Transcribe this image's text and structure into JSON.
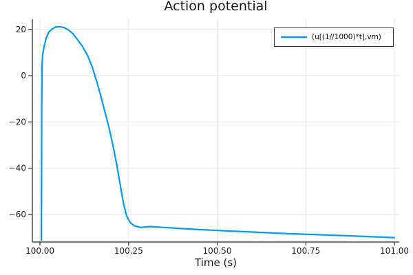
{
  "chart_data": {
    "type": "line",
    "title": "Action potential",
    "xlabel": "Time (s)",
    "ylabel": "",
    "grid": true,
    "legend_position": "top-right",
    "xlim": [
      99.9785,
      101.0135
    ],
    "ylim": [
      -71.9,
      24.4
    ],
    "x_ticks": {
      "values": [
        100.0,
        100.25,
        100.5,
        100.75,
        101.0
      ],
      "labels": [
        "100.00",
        "100.25",
        "100.50",
        "100.75",
        "101.00"
      ]
    },
    "y_ticks": {
      "values": [
        20,
        0,
        -20,
        -40,
        -60
      ],
      "labels": [
        "20",
        "0",
        "−20",
        "−40",
        "−60"
      ]
    },
    "colors": {
      "grid": "#e7e7e7",
      "axis": "#2e2e2e",
      "tick_text": "#1f1f1f",
      "background": "#ffffff",
      "legend_border": "#2e2e2e"
    },
    "series": [
      {
        "name": "(u[(1//1000)*t],vm)",
        "color": "#009af9",
        "x": [
          100.004,
          100.0045,
          100.005,
          100.006,
          100.0075,
          100.012,
          100.018,
          100.025,
          100.035,
          100.045,
          100.055,
          100.068,
          100.08,
          100.092,
          100.105,
          100.12,
          100.135,
          100.148,
          100.16,
          100.172,
          100.183,
          100.194,
          100.205,
          100.216,
          100.226,
          100.236,
          100.245,
          100.255,
          100.268,
          100.285,
          100.31,
          100.35,
          100.4,
          100.5,
          100.6,
          100.7,
          100.8,
          100.9,
          101.0
        ],
        "y": [
          -71.0,
          -45.0,
          -15.0,
          5.0,
          9.0,
          13.0,
          16.5,
          18.8,
          20.3,
          21.0,
          21.2,
          20.8,
          19.8,
          18.3,
          15.8,
          12.6,
          8.5,
          3.5,
          -2.5,
          -9.0,
          -15.5,
          -22.0,
          -29.5,
          -38.0,
          -47.0,
          -55.5,
          -60.8,
          -63.6,
          -65.0,
          -65.6,
          -65.2,
          -65.6,
          -66.1,
          -66.9,
          -67.6,
          -68.3,
          -68.8,
          -69.4,
          -70.0
        ]
      }
    ]
  }
}
